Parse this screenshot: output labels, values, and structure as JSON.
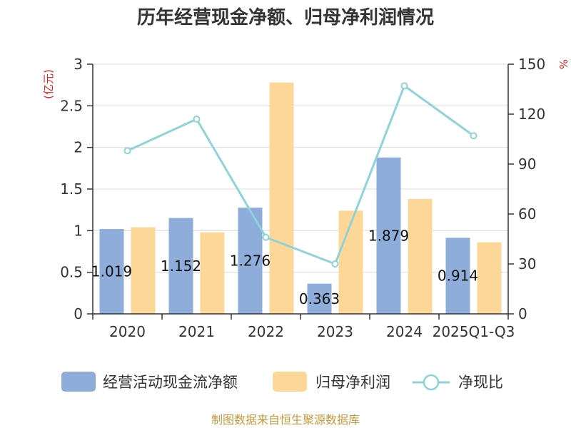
{
  "colors": {
    "cash_flow": "#8EADDB",
    "net_profit": "#FDD797",
    "ratio": "#8ED3D9",
    "unit_label": "#E02020",
    "source": "#C39A3A",
    "axis": "#333333",
    "grid": "#DDDDDD"
  },
  "source_note": "制图数据来自恒生聚源数据库",
  "chart_data": {
    "type": "bar",
    "title": "历年经营现金净额、归母净利润情况",
    "categories": [
      "2020",
      "2021",
      "2022",
      "2023",
      "2024",
      "2025Q1-Q3"
    ],
    "left_axis": {
      "unit": "(亿元)",
      "range": [
        0,
        3
      ],
      "ticks": [
        "0",
        "0.5",
        "1",
        "1.5",
        "2",
        "2.5",
        "3"
      ]
    },
    "right_axis": {
      "unit": "%",
      "range": [
        0,
        150
      ],
      "ticks": [
        "0",
        "30",
        "60",
        "90",
        "120",
        "150"
      ]
    },
    "grid": true,
    "legend_position": "bottom",
    "series": [
      {
        "name": "经营活动现金流净额",
        "kind": "bar",
        "axis": "left",
        "values": [
          1.019,
          1.152,
          1.276,
          0.363,
          1.879,
          0.914
        ],
        "labels": [
          "1.019",
          "1.152",
          "1.276",
          "0.363",
          "1.879",
          "0.914"
        ]
      },
      {
        "name": "归母净利润",
        "kind": "bar",
        "axis": "left",
        "values": [
          1.04,
          0.98,
          2.78,
          1.24,
          1.38,
          0.86
        ]
      },
      {
        "name": "净现比",
        "kind": "line",
        "axis": "right",
        "values": [
          98,
          117,
          46,
          30,
          137,
          107
        ]
      }
    ]
  }
}
